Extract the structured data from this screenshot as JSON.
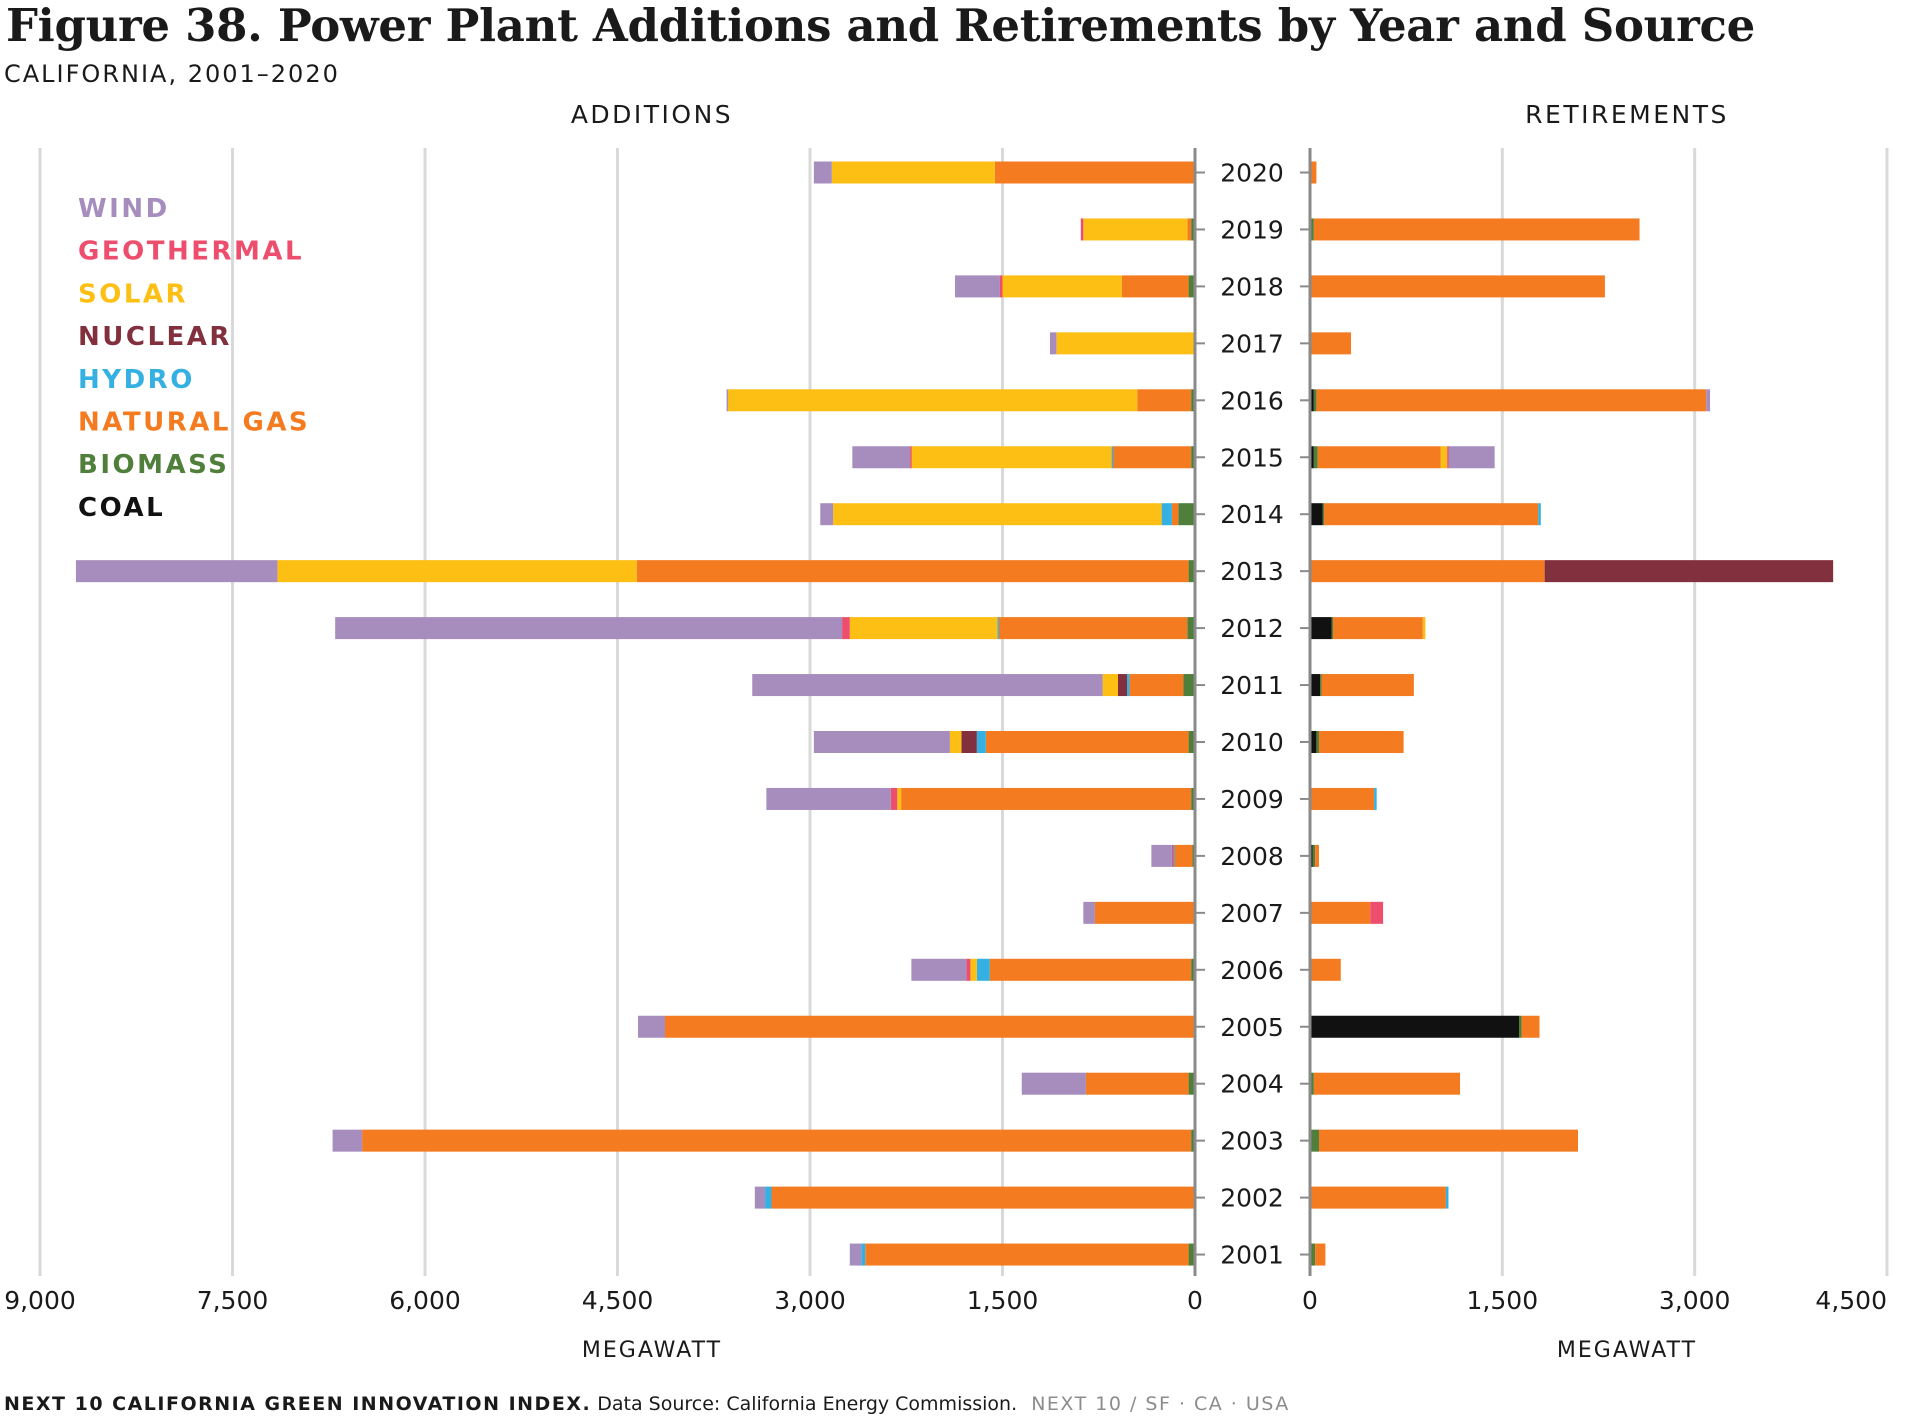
{
  "title": "Figure 38. Power Plant Additions and Retirements by Year and Source",
  "subtitle": "CALIFORNIA, 2001–2020",
  "footer": {
    "source_bold": "NEXT 10 CALIFORNIA GREEN INNOVATION INDEX.",
    "source": "Data Source: California Energy Commission.",
    "brand": "NEXT 10  /  SF · CA · USA"
  },
  "colors": {
    "Wind": "#a68dbd",
    "Geothermal": "#ee4e6d",
    "Solar": "#fdbf13",
    "Nuclear": "#822f3e",
    "Hydro": "#35b0e2",
    "Natural Gas": "#f47b20",
    "Biomass": "#4f7f3a",
    "Coal": "#111111"
  },
  "chart_data": [
    {
      "type": "bar",
      "orientation": "horizontal",
      "stacked": true,
      "panel_title": "ADDITIONS",
      "xlabel": "MEGAWATT",
      "xlim": [
        9000,
        0
      ],
      "xticks": [
        9000,
        7500,
        6000,
        4500,
        3000,
        1500,
        0
      ],
      "xtick_labels": [
        "9,000",
        "7,500",
        "6,000",
        "4,500",
        "3,000",
        "1,500",
        "0"
      ],
      "grid": true,
      "legend": {
        "position": "top-left",
        "entries": [
          "WIND",
          "GEOTHERMAL",
          "SOLAR",
          "NUCLEAR",
          "HYDRO",
          "NATURAL GAS",
          "BIOMASS",
          "COAL"
        ]
      },
      "categories": [
        "2020",
        "2019",
        "2018",
        "2017",
        "2016",
        "2015",
        "2014",
        "2013",
        "2012",
        "2011",
        "2010",
        "2009",
        "2008",
        "2007",
        "2006",
        "2005",
        "2004",
        "2003",
        "2002",
        "2001"
      ],
      "series": [
        {
          "name": "Biomass",
          "values": [
            10,
            30,
            50,
            10,
            30,
            30,
            130,
            50,
            60,
            90,
            50,
            30,
            20,
            10,
            30,
            10,
            50,
            30,
            10,
            50
          ]
        },
        {
          "name": "Natural Gas",
          "values": [
            1550,
            30,
            520,
            0,
            420,
            610,
            50,
            4300,
            1470,
            420,
            1580,
            2260,
            140,
            770,
            1570,
            4120,
            800,
            6460,
            3290,
            2520
          ]
        },
        {
          "name": "Hydro",
          "values": [
            0,
            0,
            0,
            0,
            0,
            10,
            80,
            0,
            10,
            20,
            70,
            0,
            10,
            0,
            100,
            0,
            0,
            0,
            50,
            30
          ]
        },
        {
          "name": "Nuclear",
          "values": [
            0,
            0,
            0,
            0,
            0,
            0,
            0,
            0,
            0,
            70,
            120,
            0,
            0,
            0,
            0,
            0,
            0,
            0,
            0,
            0
          ]
        },
        {
          "name": "Solar",
          "values": [
            1270,
            810,
            930,
            1070,
            3190,
            1560,
            2560,
            2800,
            1150,
            120,
            90,
            30,
            0,
            0,
            50,
            0,
            0,
            0,
            0,
            0
          ]
        },
        {
          "name": "Geothermal",
          "values": [
            0,
            20,
            20,
            0,
            0,
            10,
            0,
            0,
            60,
            0,
            0,
            50,
            10,
            0,
            30,
            0,
            0,
            0,
            0,
            0
          ]
        },
        {
          "name": "Wind",
          "values": [
            140,
            0,
            350,
            50,
            10,
            450,
            100,
            1570,
            3950,
            2730,
            1060,
            970,
            160,
            90,
            430,
            210,
            500,
            230,
            80,
            90
          ]
        }
      ]
    },
    {
      "type": "bar",
      "orientation": "horizontal",
      "stacked": true,
      "panel_title": "RETIREMENTS",
      "xlabel": "MEGAWATT",
      "xlim": [
        0,
        4500
      ],
      "xticks": [
        0,
        1500,
        3000,
        4500
      ],
      "xtick_labels": [
        "0",
        "1,500",
        "3,000",
        "4,500"
      ],
      "grid": true,
      "categories": [
        "2020",
        "2019",
        "2018",
        "2017",
        "2016",
        "2015",
        "2014",
        "2013",
        "2012",
        "2011",
        "2010",
        "2009",
        "2008",
        "2007",
        "2006",
        "2005",
        "2004",
        "2003",
        "2002",
        "2001"
      ],
      "series": [
        {
          "name": "Coal",
          "values": [
            0,
            0,
            0,
            0,
            30,
            30,
            100,
            0,
            170,
            80,
            50,
            0,
            20,
            0,
            0,
            1630,
            0,
            0,
            0,
            0
          ]
        },
        {
          "name": "Biomass",
          "values": [
            10,
            30,
            0,
            0,
            20,
            30,
            10,
            0,
            10,
            10,
            20,
            0,
            20,
            0,
            0,
            20,
            30,
            70,
            0,
            40
          ]
        },
        {
          "name": "Natural Gas",
          "values": [
            40,
            2540,
            2300,
            320,
            3040,
            960,
            1670,
            1830,
            700,
            720,
            660,
            500,
            30,
            470,
            240,
            140,
            1140,
            2020,
            1060,
            80
          ]
        },
        {
          "name": "Solar",
          "values": [
            0,
            0,
            0,
            0,
            0,
            50,
            0,
            0,
            20,
            0,
            0,
            0,
            0,
            0,
            0,
            0,
            0,
            0,
            0,
            0
          ]
        },
        {
          "name": "Nuclear",
          "values": [
            0,
            0,
            0,
            0,
            0,
            0,
            0,
            2250,
            0,
            0,
            0,
            0,
            0,
            0,
            0,
            0,
            0,
            0,
            0,
            0
          ]
        },
        {
          "name": "Hydro",
          "values": [
            0,
            0,
            0,
            0,
            0,
            0,
            20,
            0,
            0,
            0,
            0,
            20,
            0,
            0,
            0,
            0,
            0,
            0,
            20,
            0
          ]
        },
        {
          "name": "Geothermal",
          "values": [
            0,
            0,
            0,
            0,
            0,
            10,
            0,
            0,
            0,
            0,
            0,
            0,
            0,
            100,
            0,
            0,
            0,
            0,
            0,
            0
          ]
        },
        {
          "name": "Wind",
          "values": [
            0,
            0,
            0,
            0,
            30,
            360,
            0,
            0,
            0,
            0,
            0,
            0,
            0,
            0,
            0,
            0,
            0,
            0,
            0,
            0
          ]
        }
      ]
    }
  ]
}
